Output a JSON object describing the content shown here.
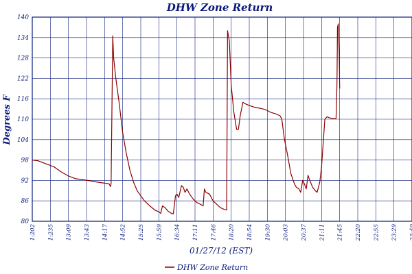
{
  "chart_data": {
    "type": "line",
    "title": "DHW Zone Return",
    "xlabel": "01/27/12 (EST)",
    "ylabel": "Degrees F",
    "ylim": [
      80,
      140
    ],
    "yticks": [
      80,
      86,
      92,
      98,
      104,
      110,
      116,
      122,
      128,
      134,
      140
    ],
    "xticks": [
      "1:202",
      "1:235",
      "13:09",
      "13:43",
      "14:17",
      "14:52",
      "15:25",
      "15:59",
      "16:34",
      "17:11",
      "17:46",
      "18:20",
      "18:54",
      "19:30",
      "20:03",
      "20:37",
      "21:11",
      "21:45",
      "22:20",
      "22:55",
      "23:29",
      "23:49"
    ],
    "grid": true,
    "legend": "bottom",
    "line_color": "#8b0000",
    "series": [
      {
        "name": "DHW Zone Return",
        "points": [
          [
            0.0,
            98
          ],
          [
            0.3,
            97.8
          ],
          [
            0.7,
            97
          ],
          [
            1.2,
            96
          ],
          [
            1.6,
            94.5
          ],
          [
            2.0,
            93.3
          ],
          [
            2.4,
            92.5
          ],
          [
            2.8,
            92.2
          ],
          [
            3.2,
            91.9
          ],
          [
            3.6,
            91.5
          ],
          [
            4.0,
            91.2
          ],
          [
            4.25,
            91
          ],
          [
            4.32,
            90.2
          ],
          [
            4.36,
            91
          ],
          [
            4.45,
            134.5
          ],
          [
            4.5,
            128
          ],
          [
            4.62,
            122
          ],
          [
            4.8,
            115
          ],
          [
            5.0,
            106
          ],
          [
            5.2,
            100
          ],
          [
            5.4,
            95
          ],
          [
            5.6,
            91.5
          ],
          [
            5.8,
            89
          ],
          [
            6.0,
            87.5
          ],
          [
            6.2,
            86
          ],
          [
            6.5,
            84.5
          ],
          [
            6.8,
            83.2
          ],
          [
            7.0,
            82.8
          ],
          [
            7.1,
            82.3
          ],
          [
            7.2,
            84.5
          ],
          [
            7.35,
            84
          ],
          [
            7.5,
            83
          ],
          [
            7.7,
            82.3
          ],
          [
            7.8,
            82.2
          ],
          [
            7.92,
            87.5
          ],
          [
            8.0,
            88
          ],
          [
            8.1,
            87
          ],
          [
            8.25,
            90.5
          ],
          [
            8.35,
            90
          ],
          [
            8.45,
            88.5
          ],
          [
            8.55,
            89.5
          ],
          [
            8.7,
            88
          ],
          [
            8.9,
            86.5
          ],
          [
            9.1,
            85.5
          ],
          [
            9.3,
            85
          ],
          [
            9.45,
            84.5
          ],
          [
            9.52,
            89.5
          ],
          [
            9.6,
            88.5
          ],
          [
            9.8,
            88
          ],
          [
            10.0,
            86
          ],
          [
            10.2,
            85
          ],
          [
            10.4,
            84
          ],
          [
            10.6,
            83.5
          ],
          [
            10.75,
            83.3
          ],
          [
            10.8,
            136
          ],
          [
            10.9,
            133
          ],
          [
            11.0,
            120
          ],
          [
            11.15,
            112
          ],
          [
            11.3,
            107
          ],
          [
            11.4,
            107
          ],
          [
            11.5,
            111
          ],
          [
            11.65,
            115
          ],
          [
            11.8,
            114.5
          ],
          [
            12.0,
            114
          ],
          [
            12.3,
            113.5
          ],
          [
            12.6,
            113.2
          ],
          [
            12.9,
            112.8
          ],
          [
            13.2,
            112
          ],
          [
            13.5,
            111.5
          ],
          [
            13.7,
            111
          ],
          [
            13.8,
            110
          ],
          [
            13.95,
            104
          ],
          [
            14.1,
            100
          ],
          [
            14.3,
            94
          ],
          [
            14.5,
            91
          ],
          [
            14.6,
            90
          ],
          [
            14.75,
            89.5
          ],
          [
            14.85,
            88.5
          ],
          [
            14.95,
            92
          ],
          [
            15.05,
            91
          ],
          [
            15.15,
            89.5
          ],
          [
            15.25,
            93.5
          ],
          [
            15.35,
            92
          ],
          [
            15.5,
            90
          ],
          [
            15.65,
            89
          ],
          [
            15.75,
            88.5
          ],
          [
            15.9,
            91.5
          ],
          [
            16.0,
            96
          ],
          [
            16.1,
            104
          ],
          [
            16.18,
            110
          ],
          [
            16.3,
            110.7
          ],
          [
            16.5,
            110.3
          ],
          [
            16.7,
            110.2
          ],
          [
            16.8,
            110.2
          ],
          [
            16.85,
            120
          ],
          [
            16.88,
            137
          ],
          [
            16.92,
            138
          ],
          [
            16.97,
            130
          ],
          [
            17.0,
            119
          ]
        ]
      }
    ]
  }
}
